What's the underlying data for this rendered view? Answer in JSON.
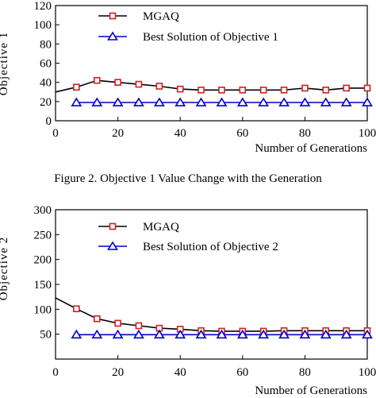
{
  "chart_data": [
    {
      "type": "line",
      "caption": "Figure 2.   Objective 1 Value Change with the Generation",
      "xlabel": "Number of Generations",
      "ylabel": "Objective 1",
      "xlim": [
        0,
        100
      ],
      "ylim": [
        0,
        120
      ],
      "xticks": [
        0,
        20,
        40,
        60,
        80,
        100
      ],
      "yticks": [
        0,
        20,
        40,
        60,
        80,
        100,
        120
      ],
      "grid": false,
      "legend_position": "top-left",
      "series": [
        {
          "name": "MGAQ",
          "color": "#000000",
          "marker": "square",
          "marker_color": "#cc2222",
          "x": [
            0,
            6.7,
            13.3,
            20,
            26.7,
            33.3,
            40,
            46.7,
            53.3,
            60,
            66.7,
            73.3,
            80,
            86.7,
            93.3,
            100
          ],
          "values": [
            30,
            35,
            42,
            40,
            38,
            36,
            33,
            32,
            32,
            32,
            32,
            32,
            34,
            32,
            34,
            34
          ],
          "markers_from_index": 1
        },
        {
          "name": "Best Solution of Objective 1",
          "color": "#0000cc",
          "marker": "triangle",
          "marker_color": "#0000cc",
          "x": [
            6.7,
            13.3,
            20,
            26.7,
            33.3,
            40,
            46.7,
            53.3,
            60,
            66.7,
            73.3,
            80,
            86.7,
            93.3,
            100
          ],
          "values": [
            19,
            19,
            19,
            19,
            19,
            19,
            19,
            19,
            19,
            19,
            19,
            19,
            19,
            19,
            19
          ],
          "markers_from_index": 0
        }
      ]
    },
    {
      "type": "line",
      "caption": "",
      "xlabel": "Number of Generations",
      "ylabel": "Objective 2",
      "xlim": [
        0,
        100
      ],
      "ylim": [
        0,
        300
      ],
      "xticks": [
        0,
        20,
        40,
        60,
        80,
        100
      ],
      "yticks": [
        50,
        100,
        150,
        200,
        250,
        300
      ],
      "grid": false,
      "legend_position": "top-left",
      "series": [
        {
          "name": "MGAQ",
          "color": "#000000",
          "marker": "square",
          "marker_color": "#cc2222",
          "x": [
            0,
            6.7,
            13.3,
            20,
            26.7,
            33.3,
            40,
            46.7,
            53.3,
            60,
            66.7,
            73.3,
            80,
            86.7,
            93.3,
            100
          ],
          "values": [
            123,
            101,
            81,
            72,
            67,
            62,
            60,
            57,
            56,
            56,
            56,
            57,
            57,
            57,
            57,
            57
          ],
          "markers_from_index": 1
        },
        {
          "name": "Best Solution of Objective 2",
          "color": "#0000cc",
          "marker": "triangle",
          "marker_color": "#0000cc",
          "x": [
            6.7,
            13.3,
            20,
            26.7,
            33.3,
            40,
            46.7,
            53.3,
            60,
            66.7,
            73.3,
            80,
            86.7,
            93.3,
            100
          ],
          "values": [
            49,
            49,
            49,
            49,
            49,
            49,
            49,
            49,
            49,
            49,
            49,
            49,
            49,
            49,
            49
          ],
          "markers_from_index": 0
        }
      ]
    }
  ]
}
